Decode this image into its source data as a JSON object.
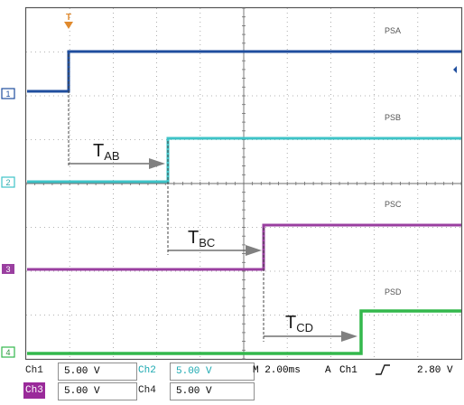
{
  "screen": {
    "trigger_marker": "T",
    "channel_markers": [
      "1",
      "2",
      "3",
      "4"
    ],
    "trace_labels": [
      "PSA",
      "PSB",
      "PSC",
      "PSD"
    ],
    "delay_labels": [
      {
        "main": "T",
        "sub": "AB"
      },
      {
        "main": "T",
        "sub": "BC"
      },
      {
        "main": "T",
        "sub": "CD"
      }
    ],
    "colors": {
      "ch1": "#1f4e9e",
      "ch2": "#3ec3c7",
      "ch3": "#9a3fa0",
      "ch4": "#33b84c",
      "grid": "#9a9a9a",
      "trigger": "#e08a2e"
    }
  },
  "status": {
    "ch1_label": "Ch1",
    "ch1_scale": "5.00 V",
    "ch2_label": "Ch2",
    "ch2_scale": "5.00 V",
    "ch3_label": "Ch3",
    "ch3_scale": "5.00 V",
    "ch4_label": "Ch4",
    "ch4_scale": "5.00 V",
    "timebase": "M 2.00ms",
    "trigger_mode": "A",
    "trigger_source": "Ch1",
    "trigger_slope_icon": "rising-edge-icon",
    "trigger_level": "2.80 V"
  }
}
